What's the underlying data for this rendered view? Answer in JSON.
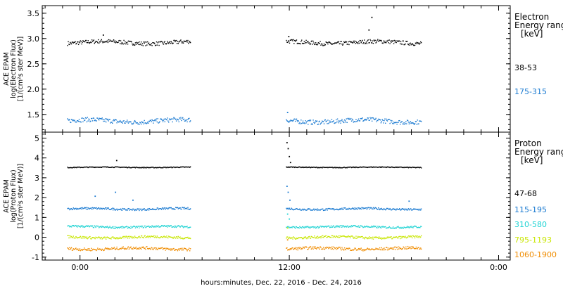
{
  "chart_data": [
    {
      "type": "scatter",
      "panel": "electron",
      "ylabel": [
        "ACE EPAM",
        "log(Electron Flux)",
        "[1/(cm²s ster MeV)]"
      ],
      "ylim": [
        1.15,
        3.65
      ],
      "yticks": [
        1.5,
        2.0,
        2.5,
        3.0,
        3.5
      ],
      "ytick_labels": [
        "1.5",
        "2.0",
        "2.5",
        "3.0",
        "3.5"
      ],
      "legend_title": [
        "Electron",
        "Energy ranges",
        "[keV]"
      ],
      "series": [
        {
          "name": "38-53",
          "color": "#000000",
          "level": 2.93,
          "noise": 0.04,
          "spikes": [
            [
              3.9,
              3.08
            ],
            [
              35.8,
              3.05
            ],
            [
              49.6,
              3.18
            ],
            [
              50.1,
              3.43
            ]
          ]
        },
        {
          "name": "175-315",
          "color": "#1a7ad1",
          "level": 1.38,
          "noise": 0.045,
          "spikes": [
            [
              35.6,
              1.55
            ]
          ]
        }
      ]
    },
    {
      "type": "scatter",
      "panel": "proton",
      "ylabel": [
        "ACE EPAM",
        "log(Proton Flux)",
        "[1/(cm²s ster MeV)]"
      ],
      "ylim": [
        -1.15,
        5.3
      ],
      "yticks": [
        -1,
        0,
        1,
        2,
        3,
        4,
        5
      ],
      "ytick_labels": [
        "-1",
        "0",
        "1",
        "2",
        "3",
        "4",
        "5"
      ],
      "legend_title": [
        "Proton",
        "Energy ranges",
        "[keV]"
      ],
      "series": [
        {
          "name": "47-68",
          "color": "#000000",
          "level": 3.55,
          "noise": 0.02,
          "spikes": [
            [
              6.2,
              3.9
            ],
            [
              35.5,
              4.8
            ],
            [
              35.7,
              4.5
            ],
            [
              35.9,
              4.1
            ],
            [
              36.1,
              3.8
            ]
          ]
        },
        {
          "name": "115-195",
          "color": "#1a7ad1",
          "level": 1.45,
          "noise": 0.05,
          "spikes": [
            [
              35.5,
              2.6
            ],
            [
              35.7,
              2.3
            ],
            [
              36.0,
              1.9
            ],
            [
              2.5,
              2.1
            ],
            [
              6.0,
              2.3
            ],
            [
              9.0,
              1.9
            ],
            [
              56.5,
              1.85
            ]
          ]
        },
        {
          "name": "310-580",
          "color": "#1fd3d3",
          "level": 0.55,
          "noise": 0.05,
          "spikes": [
            [
              35.6,
              1.2
            ],
            [
              35.9,
              0.95
            ]
          ]
        },
        {
          "name": "795-1193",
          "color": "#c8e600",
          "level": 0.02,
          "noise": 0.06,
          "spikes": [
            [
              35.6,
              0.5
            ]
          ]
        },
        {
          "name": "1060-1900",
          "color": "#f08c00",
          "level": -0.55,
          "noise": 0.07,
          "spikes": [
            [
              35.6,
              -0.1
            ]
          ]
        }
      ]
    }
  ],
  "time_axis": {
    "range_hours": [
      -6.5,
      74
    ],
    "data_gaps": [
      [
        -6.5,
        -2.3
      ],
      [
        19.0,
        35.4
      ],
      [
        58.7,
        74
      ]
    ],
    "ticks": [
      {
        "hours": 0,
        "label": "0:00"
      },
      {
        "hours": 36,
        "label": "12:00"
      },
      {
        "hours": 72,
        "label": "0:00"
      }
    ],
    "minor_step_hours": 3,
    "xlabel": "hours:minutes, Dec. 22, 2016 - Dec. 24, 2016"
  }
}
